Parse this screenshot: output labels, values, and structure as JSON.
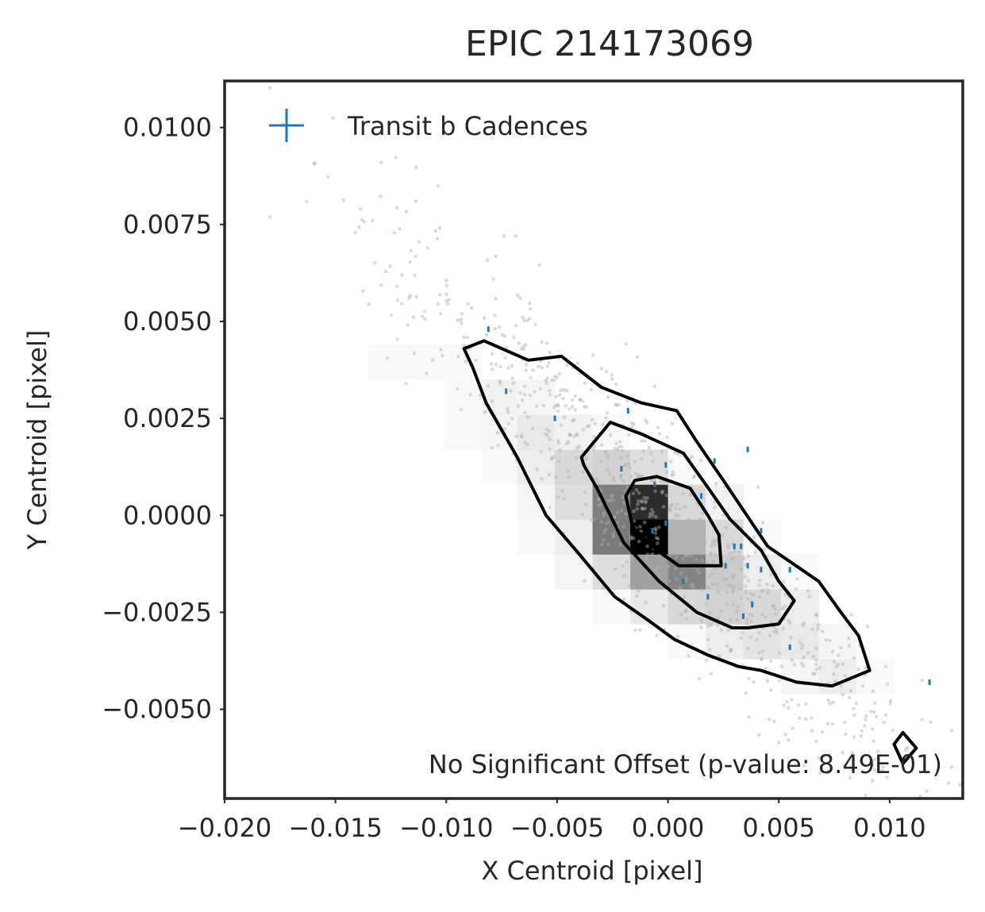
{
  "chart_data": {
    "type": "scatter",
    "title": "EPIC 214173069",
    "xlabel": "X Centroid [pixel]",
    "ylabel": "Y Centroid [pixel]",
    "xlim": [
      -0.02,
      0.0133
    ],
    "ylim": [
      -0.0073,
      0.0112
    ],
    "x_ticks": [
      -0.02,
      -0.015,
      -0.01,
      -0.005,
      0.0,
      0.005,
      0.01
    ],
    "x_tick_labels": [
      "−0.020",
      "−0.015",
      "−0.010",
      "−0.005",
      "0.000",
      "0.005",
      "0.010"
    ],
    "y_ticks": [
      0.01,
      0.0075,
      0.005,
      0.0025,
      0.0,
      -0.0025,
      -0.005
    ],
    "y_tick_labels": [
      "0.0100",
      "0.0075",
      "0.0050",
      "0.0025",
      "0.0000",
      "−0.0025",
      "−0.0050"
    ],
    "grid": false,
    "legend": {
      "position": "top-left",
      "entries": [
        {
          "label": "Transit b Cadences",
          "color": "#1f77b4",
          "marker": "plus"
        }
      ]
    },
    "annotation": "No Significant Offset (p-value: 8.49E-01)",
    "colors": {
      "background_points": "#b0b0b0",
      "transit_points": "#1f77b4",
      "contours": "#000000",
      "axes": "#262626"
    },
    "transit_points": {
      "x": [
        -0.0081,
        -0.0073,
        -0.0051,
        -0.0018,
        -0.0021,
        -0.0006,
        -0.0001,
        -0.0001,
        0.0015,
        0.0021,
        0.0036,
        0.0042,
        0.003,
        0.0026,
        0.0033,
        0.0038,
        0.0042,
        0.0018,
        -0.0007,
        0.0007,
        0.0034,
        0.0036,
        0.0055,
        0.0055,
        0.0118
      ],
      "y": [
        0.0048,
        0.0032,
        0.0025,
        0.0027,
        0.0012,
        0.0008,
        0.0013,
        -0.0002,
        0.0005,
        0.0014,
        0.0017,
        -0.0014,
        -0.0008,
        -0.0013,
        -0.0008,
        -0.0023,
        -0.0004,
        -0.0021,
        -0.0004,
        -0.0017,
        -0.0026,
        -0.0013,
        -0.0014,
        -0.0034,
        -0.0043
      ]
    },
    "density_bins": {
      "x_edges": [
        -0.0135,
        -0.0118,
        -0.0101,
        -0.0084,
        -0.0068,
        -0.0051,
        -0.0034,
        -0.0017,
        0.0,
        0.0017,
        0.0034,
        0.0051,
        0.0068,
        0.0085,
        0.0102
      ],
      "y_edges": [
        -0.0055,
        -0.0046,
        -0.0037,
        -0.0028,
        -0.0019,
        -0.001,
        -0.0001,
        0.0008,
        0.0017,
        0.0026,
        0.0035,
        0.0044,
        0.0053
      ],
      "counts": [
        [
          0,
          0,
          0,
          0,
          0,
          0,
          0,
          0,
          0,
          0,
          0,
          0,
          0,
          0
        ],
        [
          0,
          0,
          0,
          0,
          0,
          0,
          0,
          0,
          0,
          0,
          0,
          2,
          4,
          1
        ],
        [
          0,
          0,
          0,
          0,
          0,
          0,
          0,
          0,
          1,
          4,
          6,
          5,
          2,
          0
        ],
        [
          0,
          0,
          0,
          0,
          0,
          0,
          1,
          5,
          10,
          12,
          10,
          4,
          0,
          0
        ],
        [
          0,
          0,
          0,
          0,
          0,
          2,
          8,
          28,
          38,
          14,
          4,
          1,
          0,
          0
        ],
        [
          0,
          0,
          0,
          0,
          1,
          4,
          42,
          90,
          22,
          10,
          1,
          0,
          0,
          0
        ],
        [
          0,
          0,
          0,
          0,
          2,
          8,
          40,
          72,
          10,
          3,
          0,
          0,
          0,
          0
        ],
        [
          0,
          0,
          0,
          1,
          4,
          10,
          12,
          8,
          1,
          0,
          0,
          0,
          0,
          0
        ],
        [
          0,
          0,
          1,
          2,
          5,
          3,
          1,
          0,
          0,
          0,
          0,
          0,
          0,
          0
        ],
        [
          0,
          0,
          1,
          3,
          2,
          0,
          0,
          0,
          0,
          0,
          0,
          0,
          0,
          0
        ],
        [
          1,
          1,
          1,
          0,
          0,
          0,
          0,
          0,
          0,
          0,
          0,
          0,
          0,
          0
        ],
        [
          0,
          0,
          0,
          0,
          0,
          0,
          0,
          0,
          0,
          0,
          0,
          0,
          0,
          0
        ]
      ]
    },
    "contours": [
      {
        "x": [
          -0.0092,
          -0.0083,
          -0.0063,
          -0.0048,
          -0.003,
          -0.0012,
          0.0004,
          0.0013,
          0.0025,
          0.0045,
          0.0068,
          0.0078,
          0.0086,
          0.0091,
          0.0074,
          0.0058,
          0.0042,
          0.0032,
          0.0018,
          0.0003,
          -0.0009,
          -0.0024,
          -0.004,
          -0.0055,
          -0.0068,
          -0.0082,
          -0.0088
        ],
        "y": [
          0.0043,
          0.0045,
          0.004,
          0.0041,
          0.0033,
          0.0029,
          0.0027,
          0.0019,
          0.0009,
          -0.0008,
          -0.0017,
          -0.0025,
          -0.0031,
          -0.004,
          -0.0044,
          -0.0043,
          -0.004,
          -0.0039,
          -0.0036,
          -0.0032,
          -0.0027,
          -0.0021,
          -0.001,
          0.0,
          0.0015,
          0.0029,
          0.0038
        ]
      },
      {
        "x": [
          -0.0039,
          -0.0026,
          -0.0012,
          0.0007,
          0.0017,
          0.0028,
          0.0042,
          0.005,
          0.0057,
          0.005,
          0.0036,
          0.0029,
          0.0013,
          -0.0004,
          -0.002,
          -0.0032,
          -0.0038
        ],
        "y": [
          0.0015,
          0.0024,
          0.0021,
          0.0016,
          0.0008,
          -0.0001,
          -0.0009,
          -0.0017,
          -0.0022,
          -0.0028,
          -0.0029,
          -0.0029,
          -0.0025,
          -0.0017,
          -0.0007,
          0.0007,
          0.0013
        ]
      },
      {
        "x": [
          -0.0015,
          -0.0005,
          0.001,
          0.0018,
          0.0023,
          0.0024,
          0.0017,
          0.0005,
          -0.0005,
          -0.0016,
          -0.0019
        ],
        "y": [
          0.0009,
          0.001,
          0.0007,
          0.0,
          -0.0005,
          -0.0013,
          -0.0013,
          -0.0013,
          -0.0009,
          -0.0003,
          0.0005
        ]
      },
      {
        "x": [
          0.0102,
          0.0106,
          0.0112,
          0.0106,
          0.0102
        ],
        "y": [
          -0.0059,
          -0.0056,
          -0.006,
          -0.0064,
          -0.0059
        ]
      }
    ]
  }
}
